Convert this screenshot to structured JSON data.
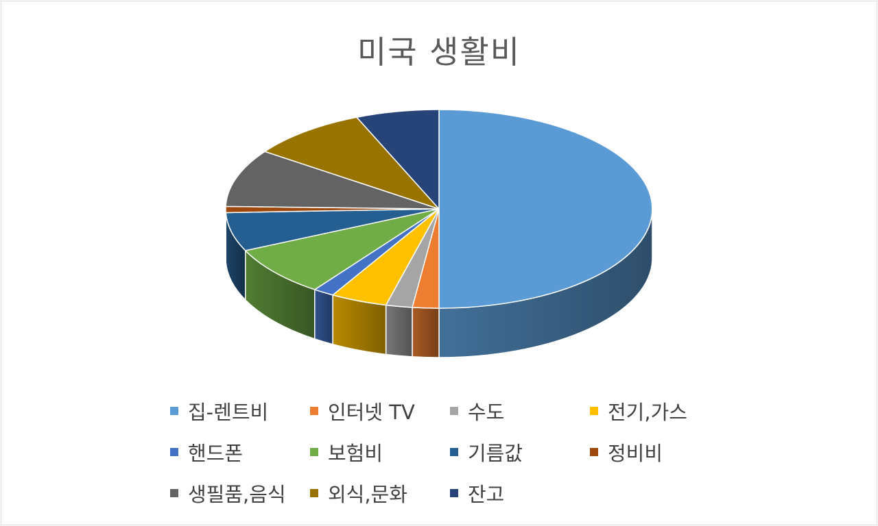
{
  "chart_data": {
    "type": "pie",
    "title": "미국 생활비",
    "style": "3d",
    "legend_position": "bottom",
    "categories": [
      "집-렌트비",
      "인터넷 TV",
      "수도",
      "전기,가스",
      "핸드폰",
      "보험비",
      "기름값",
      "정비비",
      "생필품,음식",
      "외식,문화",
      "잔고"
    ],
    "values": [
      50.0,
      2.0,
      2.0,
      4.3,
      1.6,
      8.2,
      6.3,
      1.0,
      9.4,
      8.9,
      6.3
    ],
    "colors": [
      "#5b9bd5",
      "#ed7d31",
      "#a5a5a5",
      "#ffc000",
      "#4472c4",
      "#70ad47",
      "#255e91",
      "#9e480e",
      "#636363",
      "#997300",
      "#264478"
    ]
  }
}
